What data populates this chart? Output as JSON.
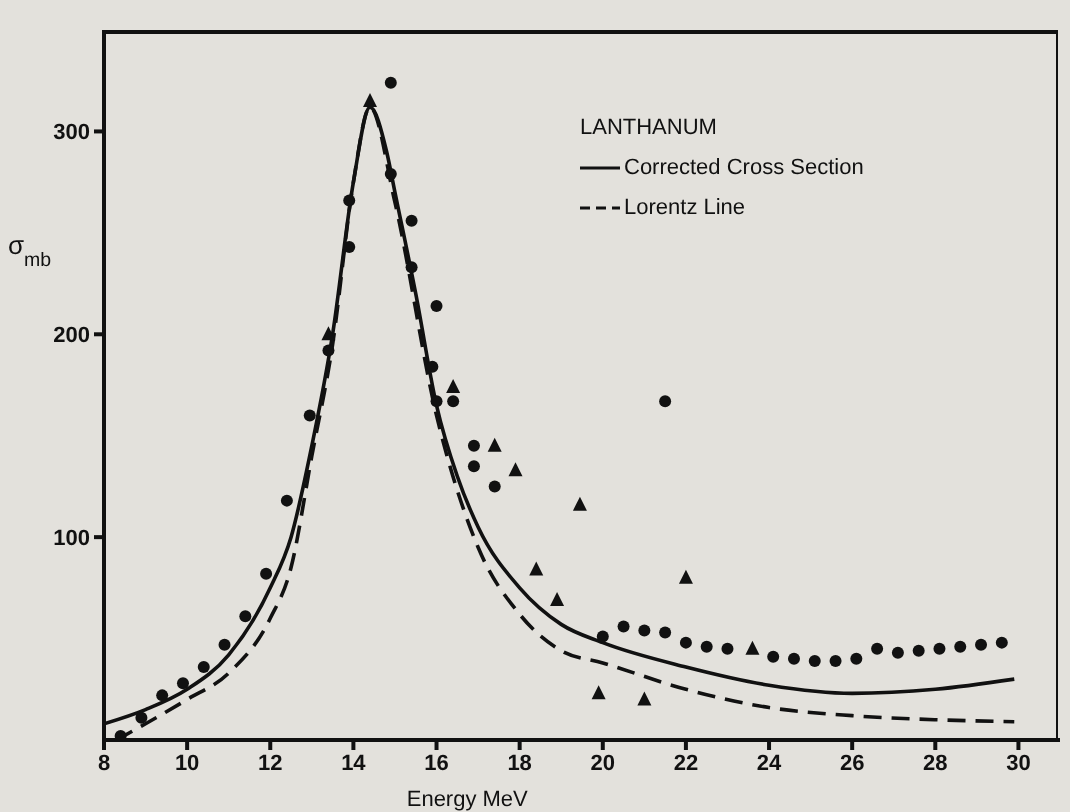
{
  "chart_data": {
    "type": "line",
    "xlabel": "Energy   MeV",
    "ylabel": "σ$_{mb}$",
    "legend_title": "LANTHANUM",
    "legend": "top right",
    "xlim": [
      8,
      31
    ],
    "ylim": [
      0,
      350
    ],
    "xticks": [
      8,
      10,
      12,
      14,
      16,
      18,
      20,
      22,
      24,
      26,
      28,
      30
    ],
    "yticks": [
      100,
      200,
      300
    ],
    "series": [
      {
        "name": "Corrected Cross Section",
        "color": "#111111",
        "line_style": "solid",
        "marker": "none",
        "x": [
          8,
          9,
          10,
          11,
          12,
          12.5,
          13,
          13.5,
          14,
          14.4,
          14.8,
          15,
          15.5,
          16,
          16.5,
          17,
          18,
          19,
          20,
          22,
          24,
          26,
          28,
          29.9
        ],
        "values": [
          8,
          15,
          25,
          42,
          75,
          100,
          145,
          200,
          275,
          312,
          290,
          270,
          220,
          165,
          130,
          105,
          75,
          57,
          48,
          36,
          27,
          23,
          25,
          30
        ]
      },
      {
        "name": "Lorentz Line",
        "color": "#111111",
        "line_style": "dashed",
        "marker": "none",
        "x": [
          8.3,
          9,
          10,
          11,
          12,
          12.5,
          13,
          13.5,
          14,
          14.4,
          15,
          16,
          17,
          18,
          19,
          20,
          22,
          24,
          26,
          28,
          29.9
        ],
        "values": [
          0,
          8,
          20,
          33,
          60,
          85,
          140,
          195,
          275,
          312,
          265,
          160,
          95,
          62,
          44,
          38,
          25,
          16,
          12,
          10,
          9
        ]
      },
      {
        "type": "scatter",
        "color": "#111111",
        "marker": "circle",
        "x": [
          8.4,
          8.9,
          9.4,
          9.9,
          10.4,
          10.9,
          11.4,
          11.9,
          12.4,
          12.95,
          13.4,
          13.9,
          13.9,
          14.9,
          14.9,
          15.4,
          15.4,
          16,
          15.9,
          16,
          16.4,
          16.9,
          16.9,
          17.4,
          20,
          20.5,
          21,
          21.5,
          21.5,
          22,
          22.5,
          23,
          24.1,
          24.6,
          25.1,
          25.6,
          26.1,
          26.6,
          27.1,
          27.6,
          28.1,
          28.6,
          29.1,
          29.6
        ],
        "values": [
          2,
          11,
          22,
          28,
          36,
          47,
          61,
          82,
          118,
          160,
          192,
          243,
          266,
          324,
          279,
          256,
          233,
          214,
          184,
          167,
          167,
          145,
          135,
          125,
          51,
          56,
          54,
          167,
          53,
          48,
          46,
          45,
          41,
          40,
          39,
          39,
          40,
          45,
          43,
          44,
          45,
          46,
          47,
          48
        ]
      },
      {
        "type": "scatter",
        "color": "#111111",
        "marker": "triangle",
        "x": [
          13.4,
          14.4,
          16.4,
          17.4,
          17.9,
          18.4,
          18.9,
          19.45,
          19.9,
          21,
          22,
          23.6
        ],
        "values": [
          200,
          315,
          174,
          145,
          133,
          84,
          69,
          116,
          23,
          20,
          80,
          45
        ]
      }
    ]
  }
}
